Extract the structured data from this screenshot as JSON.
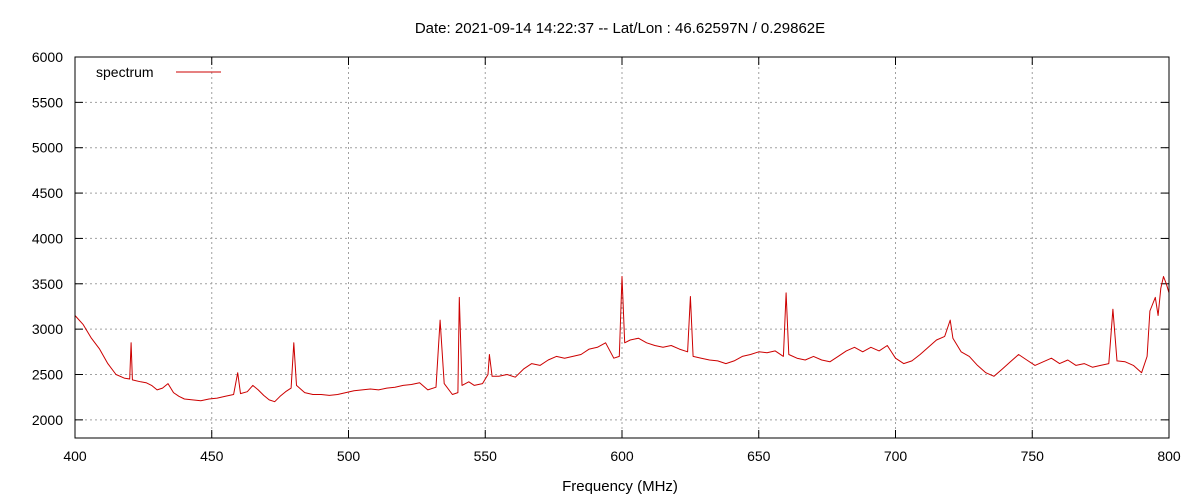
{
  "chart_data": {
    "type": "line",
    "title": "Date: 2021-09-14 14:22:37  --  Lat/Lon : 46.62597N / 0.29862E",
    "xlabel": "Frequency (MHz)",
    "ylabel": "",
    "xlim": [
      400,
      800
    ],
    "ylim": [
      1800,
      6000
    ],
    "x_ticks": [
      400,
      450,
      500,
      550,
      600,
      650,
      700,
      750,
      800
    ],
    "y_ticks": [
      2000,
      2500,
      3000,
      3500,
      4000,
      4500,
      5000,
      5500,
      6000
    ],
    "grid": true,
    "legend": "top-left",
    "series": [
      {
        "name": "spectrum",
        "color": "#cc0000",
        "points": [
          [
            400,
            3150
          ],
          [
            403,
            3050
          ],
          [
            406,
            2900
          ],
          [
            409,
            2780
          ],
          [
            412,
            2620
          ],
          [
            415,
            2500
          ],
          [
            418,
            2460
          ],
          [
            420,
            2450
          ],
          [
            420.5,
            2850
          ],
          [
            421,
            2440
          ],
          [
            424,
            2420
          ],
          [
            426,
            2410
          ],
          [
            428,
            2380
          ],
          [
            430,
            2330
          ],
          [
            432,
            2350
          ],
          [
            434,
            2400
          ],
          [
            436,
            2300
          ],
          [
            438,
            2260
          ],
          [
            440,
            2230
          ],
          [
            443,
            2220
          ],
          [
            446,
            2210
          ],
          [
            449,
            2230
          ],
          [
            452,
            2240
          ],
          [
            455,
            2260
          ],
          [
            458,
            2280
          ],
          [
            459.5,
            2520
          ],
          [
            460.5,
            2290
          ],
          [
            463,
            2310
          ],
          [
            465,
            2380
          ],
          [
            467,
            2330
          ],
          [
            469,
            2270
          ],
          [
            471,
            2220
          ],
          [
            473,
            2200
          ],
          [
            475,
            2260
          ],
          [
            477,
            2310
          ],
          [
            479,
            2350
          ],
          [
            480,
            2850
          ],
          [
            481,
            2380
          ],
          [
            484,
            2300
          ],
          [
            487,
            2280
          ],
          [
            490,
            2280
          ],
          [
            493,
            2270
          ],
          [
            496,
            2280
          ],
          [
            499,
            2300
          ],
          [
            502,
            2320
          ],
          [
            505,
            2330
          ],
          [
            508,
            2340
          ],
          [
            511,
            2330
          ],
          [
            514,
            2350
          ],
          [
            517,
            2360
          ],
          [
            520,
            2380
          ],
          [
            523,
            2390
          ],
          [
            526,
            2410
          ],
          [
            529,
            2330
          ],
          [
            532,
            2360
          ],
          [
            533.5,
            3100
          ],
          [
            535,
            2400
          ],
          [
            538,
            2280
          ],
          [
            540,
            2300
          ],
          [
            540.5,
            3350
          ],
          [
            541.5,
            2380
          ],
          [
            544,
            2420
          ],
          [
            546,
            2380
          ],
          [
            549,
            2400
          ],
          [
            551,
            2500
          ],
          [
            551.5,
            2720
          ],
          [
            552.5,
            2480
          ],
          [
            555,
            2480
          ],
          [
            558,
            2500
          ],
          [
            561,
            2470
          ],
          [
            564,
            2560
          ],
          [
            567,
            2620
          ],
          [
            570,
            2600
          ],
          [
            573,
            2660
          ],
          [
            576,
            2700
          ],
          [
            579,
            2680
          ],
          [
            582,
            2700
          ],
          [
            585,
            2720
          ],
          [
            588,
            2780
          ],
          [
            591,
            2800
          ],
          [
            594,
            2850
          ],
          [
            597,
            2680
          ],
          [
            599,
            2700
          ],
          [
            600,
            3580
          ],
          [
            601,
            2850
          ],
          [
            603,
            2880
          ],
          [
            606,
            2900
          ],
          [
            609,
            2850
          ],
          [
            612,
            2820
          ],
          [
            615,
            2800
          ],
          [
            618,
            2820
          ],
          [
            621,
            2780
          ],
          [
            624,
            2750
          ],
          [
            625,
            3360
          ],
          [
            626,
            2700
          ],
          [
            629,
            2680
          ],
          [
            632,
            2660
          ],
          [
            635,
            2650
          ],
          [
            638,
            2620
          ],
          [
            641,
            2650
          ],
          [
            644,
            2700
          ],
          [
            647,
            2720
          ],
          [
            650,
            2750
          ],
          [
            653,
            2740
          ],
          [
            656,
            2760
          ],
          [
            659,
            2700
          ],
          [
            660,
            3400
          ],
          [
            661,
            2720
          ],
          [
            664,
            2680
          ],
          [
            667,
            2660
          ],
          [
            670,
            2700
          ],
          [
            673,
            2660
          ],
          [
            676,
            2640
          ],
          [
            679,
            2700
          ],
          [
            682,
            2760
          ],
          [
            685,
            2800
          ],
          [
            688,
            2750
          ],
          [
            691,
            2800
          ],
          [
            694,
            2760
          ],
          [
            697,
            2820
          ],
          [
            700,
            2680
          ],
          [
            703,
            2620
          ],
          [
            706,
            2650
          ],
          [
            709,
            2720
          ],
          [
            712,
            2800
          ],
          [
            715,
            2880
          ],
          [
            718,
            2920
          ],
          [
            720,
            3100
          ],
          [
            721,
            2900
          ],
          [
            724,
            2750
          ],
          [
            727,
            2700
          ],
          [
            730,
            2600
          ],
          [
            733,
            2520
          ],
          [
            736,
            2480
          ],
          [
            739,
            2560
          ],
          [
            742,
            2640
          ],
          [
            745,
            2720
          ],
          [
            748,
            2660
          ],
          [
            751,
            2600
          ],
          [
            754,
            2640
          ],
          [
            757,
            2680
          ],
          [
            760,
            2620
          ],
          [
            763,
            2660
          ],
          [
            766,
            2600
          ],
          [
            769,
            2620
          ],
          [
            772,
            2580
          ],
          [
            775,
            2600
          ],
          [
            778,
            2620
          ],
          [
            779.5,
            3220
          ],
          [
            781,
            2650
          ],
          [
            784,
            2640
          ],
          [
            787,
            2600
          ],
          [
            790,
            2520
          ],
          [
            792,
            2700
          ],
          [
            793,
            3200
          ],
          [
            795,
            3350
          ],
          [
            796,
            3150
          ],
          [
            797,
            3450
          ],
          [
            798,
            3580
          ],
          [
            799,
            3500
          ],
          [
            800,
            3400
          ]
        ]
      }
    ]
  }
}
